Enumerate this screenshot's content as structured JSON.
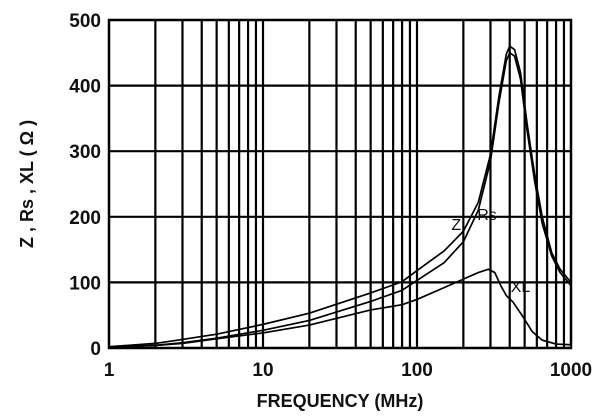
{
  "chart_data": {
    "type": "line",
    "title": "",
    "xlabel": "FREQUENCY (MHz)",
    "ylabel": "Z , Rs , XL ( Ω )",
    "x_scale": "log",
    "xlim": [
      1,
      1000
    ],
    "ylim": [
      0,
      500
    ],
    "grid": true,
    "x_ticks": [
      {
        "value": 1,
        "label": "1"
      },
      {
        "value": 10,
        "label": "10"
      },
      {
        "value": 100,
        "label": "100"
      },
      {
        "value": 1000,
        "label": "1000"
      }
    ],
    "y_ticks": [
      {
        "value": 0,
        "label": "0"
      },
      {
        "value": 100,
        "label": "100"
      },
      {
        "value": 200,
        "label": "200"
      },
      {
        "value": 300,
        "label": "300"
      },
      {
        "value": 400,
        "label": "400"
      },
      {
        "value": 500,
        "label": "500"
      }
    ],
    "series": [
      {
        "name": "Z",
        "points": [
          [
            1,
            2
          ],
          [
            2,
            7
          ],
          [
            3,
            13
          ],
          [
            5,
            21
          ],
          [
            10,
            36
          ],
          [
            20,
            53
          ],
          [
            50,
            84
          ],
          [
            80,
            101
          ],
          [
            100,
            118
          ],
          [
            150,
            148
          ],
          [
            200,
            178
          ],
          [
            250,
            222
          ],
          [
            300,
            295
          ],
          [
            340,
            383
          ],
          [
            380,
            448
          ],
          [
            400,
            460
          ],
          [
            430,
            455
          ],
          [
            470,
            420
          ],
          [
            520,
            340
          ],
          [
            580,
            265
          ],
          [
            650,
            200
          ],
          [
            750,
            145
          ],
          [
            850,
            120
          ],
          [
            1000,
            100
          ]
        ]
      },
      {
        "name": "Rs",
        "points": [
          [
            1,
            1
          ],
          [
            2,
            4
          ],
          [
            3,
            8
          ],
          [
            5,
            15
          ],
          [
            10,
            27
          ],
          [
            20,
            42
          ],
          [
            50,
            71
          ],
          [
            80,
            88
          ],
          [
            100,
            103
          ],
          [
            150,
            130
          ],
          [
            200,
            162
          ],
          [
            250,
            210
          ],
          [
            300,
            285
          ],
          [
            340,
            373
          ],
          [
            380,
            438
          ],
          [
            400,
            450
          ],
          [
            430,
            445
          ],
          [
            470,
            410
          ],
          [
            520,
            330
          ],
          [
            580,
            255
          ],
          [
            650,
            190
          ],
          [
            750,
            140
          ],
          [
            850,
            115
          ],
          [
            1000,
            95
          ]
        ]
      },
      {
        "name": "XL",
        "points": [
          [
            1,
            1
          ],
          [
            2,
            4
          ],
          [
            3,
            7
          ],
          [
            5,
            14
          ],
          [
            10,
            23
          ],
          [
            20,
            35
          ],
          [
            50,
            58
          ],
          [
            80,
            66
          ],
          [
            100,
            74
          ],
          [
            150,
            92
          ],
          [
            200,
            105
          ],
          [
            250,
            115
          ],
          [
            290,
            120
          ],
          [
            320,
            115
          ],
          [
            350,
            95
          ],
          [
            380,
            80
          ],
          [
            420,
            70
          ],
          [
            480,
            50
          ],
          [
            560,
            25
          ],
          [
            650,
            12
          ],
          [
            800,
            6
          ],
          [
            1000,
            5
          ]
        ]
      }
    ],
    "annotations": [
      {
        "text": "Z",
        "series": "Z",
        "x": 180,
        "y": 180
      },
      {
        "text": "Rs",
        "series": "Rs",
        "x": 285,
        "y": 195
      },
      {
        "text": "XL",
        "series": "XL",
        "x": 470,
        "y": 85
      }
    ]
  }
}
